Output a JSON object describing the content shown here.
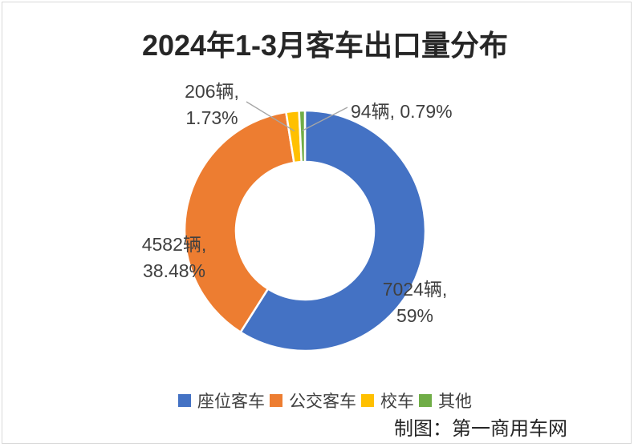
{
  "title": "2024年1-3月客车出口量分布",
  "credit": "制图：第一商用车网",
  "chart_data": {
    "type": "pie",
    "subtype": "donut",
    "title": "2024年1-3月客车出口量分布",
    "unit": "辆",
    "categories": [
      "座位客车",
      "公交客车",
      "校车",
      "其他"
    ],
    "values": [
      7024,
      4582,
      206,
      94
    ],
    "percent_labels": [
      "59%",
      "38.48%",
      "1.73%",
      "0.79%"
    ],
    "data_labels": [
      "7024辆, 59%",
      "4582辆, 38.48%",
      "206辆, 1.73%",
      "94辆, 0.79%"
    ],
    "colors": [
      "#4472C4",
      "#ED7D31",
      "#FFC000",
      "#70AD47"
    ],
    "start_angle_deg": 0,
    "direction": "clockwise",
    "donut_hole_ratio": 0.57,
    "legend_position": "bottom"
  },
  "labels": {
    "seat": {
      "line1": "7024辆,",
      "line2": "59%"
    },
    "transit": {
      "line1": "4582辆,",
      "line2": "38.48%"
    },
    "school": {
      "line1": "206辆,",
      "line2": "1.73%"
    },
    "other": {
      "line1": "94辆, 0.79%"
    }
  },
  "legend": {
    "items": [
      {
        "label": "座位客车",
        "color": "#4472C4"
      },
      {
        "label": "公交客车",
        "color": "#ED7D31"
      },
      {
        "label": "校车",
        "color": "#FFC000"
      },
      {
        "label": "其他",
        "color": "#70AD47"
      }
    ]
  },
  "colors": {
    "label_text": "#404040",
    "title_text": "#262626",
    "leader_line": "#A6A6A6",
    "frame_border": "#D9D9D9",
    "background": "#FFFFFF",
    "slice_gap": "#FFFFFF"
  }
}
